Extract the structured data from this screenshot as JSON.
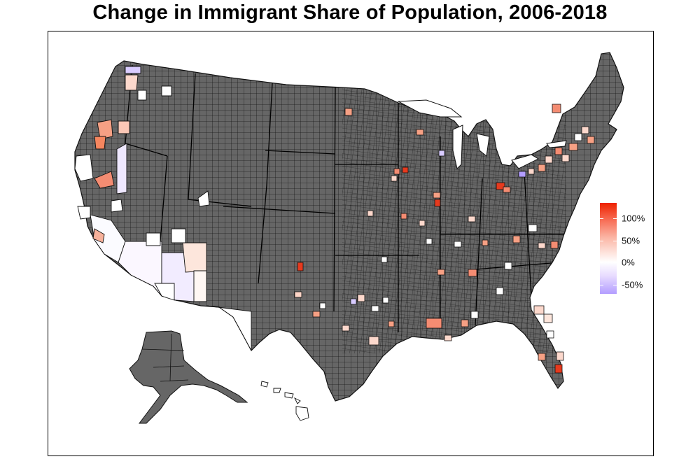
{
  "title": "Change in Immigrant Share of Population, 2006-2018",
  "colors": {
    "no_data": "#666666",
    "border": "#111111",
    "high": "#ee2200",
    "zero": "#ffffff",
    "low": "#b39dff"
  },
  "legend": {
    "ticks": [
      "100%",
      "50%",
      "0%",
      "-50%"
    ],
    "tick_values": [
      100,
      50,
      0,
      -50
    ],
    "range": [
      -65,
      130
    ]
  },
  "regions": [
    {
      "name": "contiguous-us",
      "fill": "no_data"
    },
    {
      "name": "alaska",
      "fill": "no_data"
    },
    {
      "name": "hawaii",
      "fill": "zero"
    }
  ]
}
